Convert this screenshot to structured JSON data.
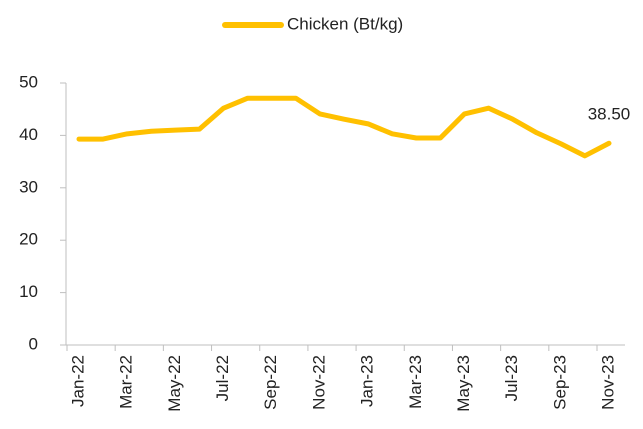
{
  "chart_data": {
    "type": "line",
    "categories": [
      "Jan-22",
      null,
      "Mar-22",
      null,
      "May-22",
      null,
      "Jul-22",
      null,
      "Sep-22",
      null,
      "Nov-22",
      null,
      "Jan-23",
      null,
      "Mar-23",
      null,
      "May-23",
      null,
      "Jul-23",
      null,
      "Sep-23",
      null,
      "Nov-23"
    ],
    "series": [
      {
        "name": "Chicken (Bt/kg)",
        "color": "#ffc000",
        "values": [
          39.3,
          39.3,
          40.3,
          40.8,
          41.0,
          41.2,
          45.2,
          47.1,
          47.1,
          47.1,
          44.1,
          43.1,
          42.2,
          40.3,
          39.5,
          39.5,
          44.1,
          45.2,
          43.1,
          40.5,
          38.4,
          36.1,
          38.5
        ],
        "value_labels": [
          null,
          null,
          null,
          null,
          null,
          null,
          null,
          null,
          null,
          null,
          null,
          null,
          null,
          null,
          null,
          null,
          null,
          null,
          null,
          null,
          null,
          null,
          "38.50"
        ]
      }
    ],
    "ylim": [
      0,
      50
    ],
    "yticks": [
      0,
      10,
      20,
      30,
      40,
      50
    ],
    "legend": "top"
  }
}
